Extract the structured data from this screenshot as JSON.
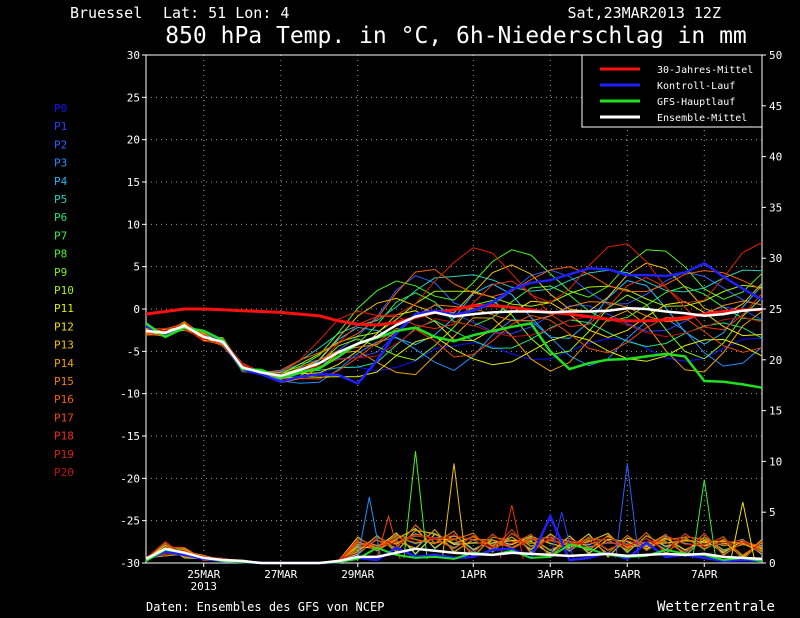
{
  "header": {
    "location": "Bruessel",
    "latlon": "Lat: 51 Lon: 4",
    "run": "Sat,23MAR2013 12Z",
    "title": "850 hPa Temp. in °C, 6h-Niederschlag in mm"
  },
  "footer": {
    "source": "Daten: Ensembles des GFS von NCEP",
    "brand": "Wetterzentrale"
  },
  "member_labels": [
    "P0",
    "P1",
    "P2",
    "P3",
    "P4",
    "P5",
    "P6",
    "P7",
    "P8",
    "P9",
    "P10",
    "P11",
    "P12",
    "P13",
    "P14",
    "P15",
    "P16",
    "P17",
    "P18",
    "P19",
    "P20"
  ],
  "member_colors": [
    "#1010ff",
    "#2a40ff",
    "#2a60ff",
    "#2090ff",
    "#20b8ff",
    "#20d0c0",
    "#20e080",
    "#30f040",
    "#50f020",
    "#80f010",
    "#a8f000",
    "#e0f000",
    "#f0e000",
    "#f0c000",
    "#f0a000",
    "#f08000",
    "#f06000",
    "#f04800",
    "#f03000",
    "#e02000",
    "#c01010"
  ],
  "colors": {
    "clim": "#ff1010",
    "control": "#2020ff",
    "gfs": "#20e020",
    "ens_mean": "#ffffff",
    "grid": "#a0a0a0",
    "text": "#ffffff"
  },
  "chart_data": {
    "type": "line",
    "x_unit": "days after 23MAR2013 12Z",
    "x_ticks": [
      {
        "x": 1.5,
        "label": "25MAR",
        "sub": "2013"
      },
      {
        "x": 3.5,
        "label": "27MAR",
        "sub": ""
      },
      {
        "x": 5.5,
        "label": "29MAR",
        "sub": ""
      },
      {
        "x": 8.5,
        "label": "1APR",
        "sub": ""
      },
      {
        "x": 10.5,
        "label": "3APR",
        "sub": ""
      },
      {
        "x": 12.5,
        "label": "5APR",
        "sub": ""
      },
      {
        "x": 14.5,
        "label": "7APR",
        "sub": ""
      }
    ],
    "xlim": [
      0,
      16
    ],
    "ylim_left": [
      -30,
      30
    ],
    "ylim_right": [
      0,
      50
    ],
    "y_ticks_left": [
      -30,
      -25,
      -20,
      -15,
      -10,
      -5,
      0,
      5,
      10,
      15,
      20,
      25,
      30
    ],
    "y_ticks_right": [
      0,
      5,
      10,
      15,
      20,
      25,
      30,
      35,
      40,
      45,
      50
    ],
    "grid": true,
    "legend_position": "top-right",
    "legend": [
      {
        "key": "clim",
        "label": "30-Jahres-Mittel"
      },
      {
        "key": "control",
        "label": "Kontroll-Lauf"
      },
      {
        "key": "gfs",
        "label": "GFS-Hauptlauf"
      },
      {
        "key": "ens_mean",
        "label": "Ensemble-Mittel"
      }
    ],
    "x": [
      0,
      0.5,
      1,
      1.5,
      2,
      2.5,
      3,
      3.5,
      4,
      4.5,
      5,
      5.5,
      6,
      6.5,
      7,
      7.5,
      8,
      8.5,
      9,
      9.5,
      10,
      10.5,
      11,
      11.5,
      12,
      12.5,
      13,
      13.5,
      14,
      14.5,
      15,
      15.5,
      16
    ],
    "temperature": {
      "clim": [
        -0.6,
        -0.3,
        0,
        0,
        -0.1,
        -0.2,
        -0.3,
        -0.4,
        -0.6,
        -0.8,
        -1.4,
        -1.8,
        -1.9,
        -1.6,
        -1.0,
        -0.4,
        -0.1,
        0.4,
        0.4,
        0.2,
        -0.1,
        -0.4,
        -0.6,
        -0.9,
        -1.2,
        -1.4,
        -1.4,
        -1.3,
        -1.0,
        -0.6,
        -0.3,
        -0.1,
        -0.1
      ],
      "control": [
        -2.0,
        -3.2,
        -2.2,
        -2.6,
        -3.9,
        -7.2,
        -7.7,
        -8.6,
        -8.0,
        -7.7,
        -7.8,
        -8.8,
        -6.1,
        -2.8,
        -0.6,
        -0.2,
        -0.7,
        -0.2,
        0.8,
        2.3,
        3.1,
        3.4,
        4.1,
        4.8,
        4.7,
        4.0,
        4.0,
        3.9,
        4.3,
        5.4,
        3.8,
        2.4,
        1.1
      ],
      "gfs": [
        -1.7,
        -3.3,
        -2.2,
        -2.6,
        -3.7,
        -7.1,
        -7.2,
        -8.1,
        -7.5,
        -7.0,
        -5.6,
        -4.1,
        -3.4,
        -2.6,
        -2.2,
        -3.3,
        -3.8,
        -3.1,
        -2.6,
        -2.1,
        -1.7,
        -5.0,
        -7.1,
        -6.4,
        -6.0,
        -5.9,
        -5.6,
        -5.3,
        -5.6,
        -8.5,
        -8.6,
        -8.9,
        -9.3
      ],
      "ens_mean": [
        -2.6,
        -2.8,
        -2.0,
        -3.3,
        -3.9,
        -6.9,
        -7.5,
        -7.9,
        -7.2,
        -6.4,
        -5.1,
        -4.1,
        -3.3,
        -1.9,
        -0.9,
        -0.4,
        -0.9,
        -0.6,
        -0.4,
        -0.3,
        -0.3,
        -0.4,
        -0.3,
        -0.3,
        -0.2,
        0.1,
        0.0,
        -0.3,
        -0.5,
        -0.8,
        -0.6,
        -0.2,
        0.0
      ]
    },
    "precipitation": {
      "ens_mean": [
        0.4,
        1.4,
        1.0,
        0.5,
        0.3,
        0.2,
        0,
        0,
        0,
        0,
        0.2,
        0.6,
        0.6,
        1.0,
        1.4,
        1.2,
        1.0,
        0.9,
        0.8,
        1.0,
        0.9,
        0.8,
        0.7,
        0.8,
        0.9,
        0.7,
        0.8,
        0.9,
        0.8,
        0.9,
        0.6,
        0.5,
        0.4
      ],
      "control": [
        0.3,
        1.1,
        0.8,
        0.4,
        0.2,
        0.1,
        0,
        0,
        0,
        0,
        0.1,
        0.5,
        0.3,
        1.5,
        0.6,
        0.8,
        0.5,
        0.6,
        1.3,
        1.4,
        0.5,
        4.6,
        0.3,
        0.5,
        1.0,
        0.4,
        2.0,
        0.6,
        0.8,
        0.5,
        0.2,
        0.3,
        0.2
      ],
      "gfs": [
        0.2,
        1.3,
        1.0,
        0.5,
        0.2,
        0.1,
        0,
        0,
        0,
        0,
        0.1,
        0.4,
        1.5,
        0.8,
        0.5,
        0.6,
        0.4,
        1.0,
        0.8,
        1.2,
        0.5,
        0.6,
        1.8,
        1.4,
        0.8,
        0.6,
        0.7,
        1.3,
        0.9,
        0.8,
        0.3,
        0.5,
        0.2
      ],
      "peaks": [
        {
          "x": 5.8,
          "v": 6.5
        },
        {
          "x": 7.0,
          "v": 11.0
        },
        {
          "x": 8.0,
          "v": 9.8
        },
        {
          "x": 9.5,
          "v": 5.7
        },
        {
          "x": 12.5,
          "v": 9.8
        },
        {
          "x": 14.5,
          "v": 8.2
        },
        {
          "x": 15.5,
          "v": 6.0
        },
        {
          "x": 6.3,
          "v": 4.6
        },
        {
          "x": 10.8,
          "v": 5.0
        }
      ]
    }
  }
}
